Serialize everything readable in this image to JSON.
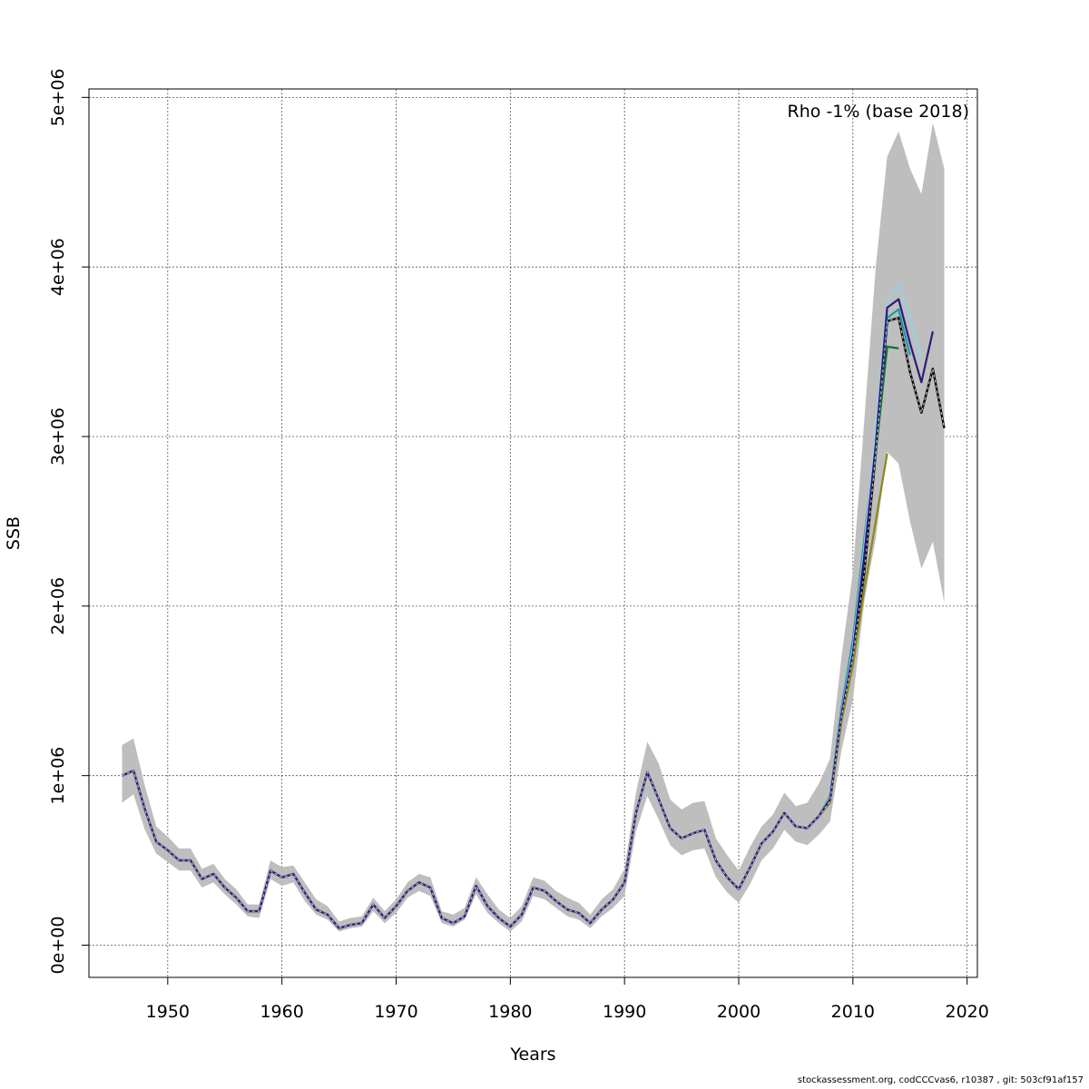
{
  "chart_data": {
    "type": "line",
    "xlabel": "Years",
    "ylabel": "SSB",
    "xlim": [
      1943.1,
      2020.9
    ],
    "ylim": [
      -190000,
      5050000
    ],
    "x_ticks": [
      1950,
      1960,
      1970,
      1980,
      1990,
      2000,
      2010,
      2020
    ],
    "x_tick_labels": [
      "1950",
      "1960",
      "1970",
      "1980",
      "1990",
      "2000",
      "2010",
      "2020"
    ],
    "y_ticks": [
      0,
      1000000,
      2000000,
      3000000,
      4000000,
      5000000
    ],
    "y_tick_labels": [
      "0e+00",
      "1e+06",
      "2e+06",
      "3e+06",
      "4e+06",
      "5e+06"
    ],
    "grid": true,
    "annotation": "Rho -1% (base 2018)",
    "footer": "stockassessment.org, codCCCvas6, r10387 , git: 503cf91af157",
    "colors": {
      "band": "#bebebe",
      "base": "#000000",
      "peel_2017": "#9bcde8",
      "peel_2016": "#2b1b7a",
      "peel_2015": "#1b9aa8",
      "peel_2014": "#1a6b3a",
      "peel_2013": "#8a8a1a"
    },
    "base": {
      "x": [
        1946,
        1947,
        1948,
        1949,
        1950,
        1951,
        1952,
        1953,
        1954,
        1955,
        1956,
        1957,
        1958,
        1959,
        1960,
        1961,
        1962,
        1963,
        1964,
        1965,
        1966,
        1967,
        1968,
        1969,
        1970,
        1971,
        1972,
        1973,
        1974,
        1975,
        1976,
        1977,
        1978,
        1979,
        1980,
        1981,
        1982,
        1983,
        1984,
        1985,
        1986,
        1987,
        1988,
        1989,
        1990,
        1991,
        1992,
        1993,
        1994,
        1995,
        1996,
        1997,
        1998,
        1999,
        2000,
        2001,
        2002,
        2003,
        2004,
        2005,
        2006,
        2007,
        2008,
        2009,
        2010,
        2011,
        2012,
        2013,
        2014,
        2015,
        2016,
        2017,
        2018
      ],
      "y": [
        1000000,
        1030000,
        800000,
        610000,
        560000,
        500000,
        500000,
        390000,
        420000,
        340000,
        280000,
        200000,
        200000,
        440000,
        400000,
        420000,
        310000,
        210000,
        180000,
        100000,
        120000,
        130000,
        240000,
        160000,
        230000,
        320000,
        370000,
        340000,
        160000,
        130000,
        170000,
        350000,
        230000,
        160000,
        110000,
        180000,
        340000,
        320000,
        260000,
        210000,
        190000,
        130000,
        210000,
        270000,
        370000,
        780000,
        1020000,
        860000,
        690000,
        630000,
        660000,
        680000,
        500000,
        400000,
        330000,
        460000,
        600000,
        670000,
        780000,
        700000,
        690000,
        760000,
        850000,
        1350000,
        1700000,
        2200000,
        2900000,
        3680000,
        3700000,
        3380000,
        3140000,
        3400000,
        3050000
      ]
    },
    "band_upper": [
      1180000,
      1220000,
      940000,
      700000,
      640000,
      570000,
      570000,
      450000,
      480000,
      390000,
      330000,
      240000,
      240000,
      500000,
      460000,
      470000,
      370000,
      270000,
      230000,
      140000,
      160000,
      170000,
      280000,
      200000,
      270000,
      370000,
      420000,
      400000,
      200000,
      180000,
      220000,
      400000,
      300000,
      210000,
      160000,
      230000,
      400000,
      380000,
      320000,
      280000,
      250000,
      180000,
      270000,
      330000,
      450000,
      900000,
      1200000,
      1070000,
      860000,
      800000,
      840000,
      850000,
      630000,
      530000,
      440000,
      580000,
      700000,
      770000,
      900000,
      820000,
      840000,
      950000,
      1100000,
      1700000,
      2200000,
      3100000,
      4000000,
      4650000,
      4800000,
      4580000,
      4430000,
      4850000,
      4580000
    ],
    "band_lower": [
      840000,
      890000,
      680000,
      540000,
      490000,
      440000,
      440000,
      340000,
      370000,
      300000,
      240000,
      170000,
      160000,
      390000,
      350000,
      370000,
      260000,
      180000,
      150000,
      80000,
      100000,
      110000,
      200000,
      130000,
      190000,
      280000,
      320000,
      290000,
      130000,
      110000,
      150000,
      300000,
      190000,
      130000,
      80000,
      140000,
      290000,
      270000,
      220000,
      170000,
      150000,
      100000,
      170000,
      220000,
      290000,
      670000,
      880000,
      740000,
      590000,
      530000,
      560000,
      570000,
      400000,
      310000,
      250000,
      360000,
      500000,
      570000,
      680000,
      610000,
      590000,
      650000,
      730000,
      1150000,
      1450000,
      2030000,
      2400000,
      2910000,
      2840000,
      2500000,
      2220000,
      2380000,
      2020000
    ],
    "series": [
      {
        "name": "",
        "color_key": "peel_2013",
        "start": 1946,
        "tail_x": [
          2008,
          2009,
          2010,
          2011,
          2012,
          2013
        ],
        "tail_y": [
          840000,
          1320000,
          1650000,
          2100000,
          2500000,
          2900000
        ]
      },
      {
        "name": "",
        "color_key": "peel_2014",
        "start": 1946,
        "tail_x": [
          2008,
          2009,
          2010,
          2011,
          2012,
          2013,
          2014
        ],
        "tail_y": [
          860000,
          1380000,
          1760000,
          2350000,
          2900000,
          3530000,
          3520000
        ]
      },
      {
        "name": "",
        "color_key": "peel_2015",
        "start": 1946,
        "tail_x": [
          2008,
          2009,
          2010,
          2011,
          2012,
          2013,
          2014,
          2015
        ],
        "tail_y": [
          880000,
          1400000,
          1800000,
          2400000,
          3000000,
          3700000,
          3750000,
          3480000
        ]
      },
      {
        "name": "",
        "color_key": "peel_2017",
        "start": 1946,
        "tail_x": [
          2008,
          2009,
          2010,
          2011,
          2012,
          2013,
          2014,
          2015,
          2016
        ],
        "tail_y": [
          870000,
          1370000,
          1750000,
          2350000,
          3050000,
          3800000,
          3890000,
          3700000,
          3470000
        ]
      },
      {
        "name": "",
        "color_key": "peel_2016",
        "start": 1946,
        "tail_x": [
          2008,
          2009,
          2010,
          2011,
          2012,
          2013,
          2014,
          2015,
          2016,
          2017
        ],
        "tail_y": [
          860000,
          1360000,
          1720000,
          2300000,
          2950000,
          3760000,
          3810000,
          3550000,
          3320000,
          3620000
        ]
      }
    ]
  }
}
